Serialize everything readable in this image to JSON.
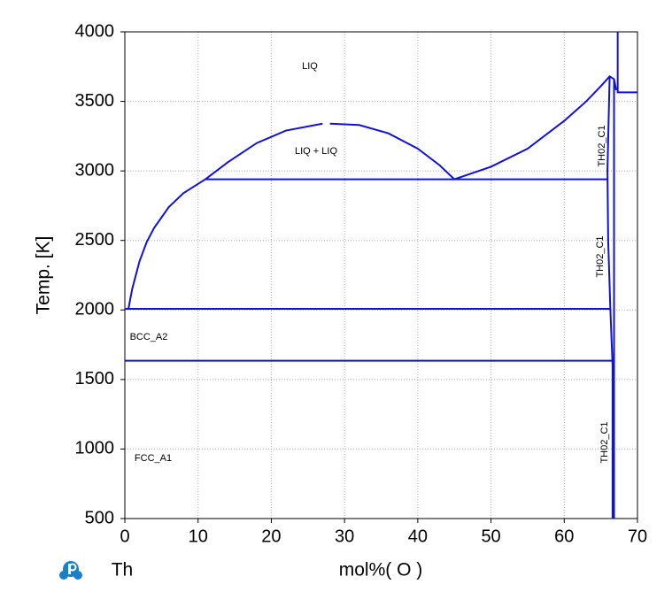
{
  "chart_data": {
    "type": "line",
    "x_label": "mol%( O )",
    "y_label": "Temp. [K]",
    "element": "Th",
    "xlim": [
      0,
      70
    ],
    "ylim": [
      500,
      4000
    ],
    "xticks": [
      0,
      10,
      20,
      30,
      40,
      50,
      60,
      70
    ],
    "yticks": [
      500,
      1000,
      1500,
      2000,
      2500,
      3000,
      3500,
      4000
    ],
    "grid": true,
    "series": [
      {
        "color": "#1010e0",
        "x": [
          0.5,
          1,
          2,
          3,
          4,
          6,
          8,
          11
        ],
        "values": [
          2010,
          2150,
          2350,
          2490,
          2590,
          2740,
          2840,
          2940
        ]
      },
      {
        "color": "#1010e0",
        "x": [
          11,
          14,
          18,
          22,
          27,
          27.5,
          28,
          32,
          36,
          40,
          43,
          45
        ],
        "values": [
          2940,
          3060,
          3200,
          3290,
          3340,
          null,
          3340,
          3330,
          3270,
          3160,
          3040,
          2940
        ]
      },
      {
        "color": "#1010e0",
        "x": [
          45,
          50,
          55,
          60,
          63,
          65,
          66.2,
          66.8,
          67.1
        ],
        "values": [
          2940,
          3030,
          3160,
          3360,
          3500,
          3610,
          3680,
          3660,
          3580
        ]
      },
      {
        "color": "#1010e0",
        "x": [
          11,
          66
        ],
        "values": [
          2940,
          2940
        ]
      },
      {
        "color": "#1010e0",
        "x": [
          0,
          66.3
        ],
        "values": [
          2008,
          2008
        ]
      },
      {
        "color": "#1010e0",
        "x": [
          0,
          66.6
        ],
        "values": [
          1635,
          1635
        ]
      },
      {
        "color": "#1010e0",
        "x": [
          66.2,
          65.9,
          66.0,
          66.3,
          66.6,
          66.6
        ],
        "values": [
          3680,
          3000,
          2500,
          2000,
          1600,
          500
        ]
      },
      {
        "color": "#1010e0",
        "x": [
          66.8,
          66.8,
          66.8,
          66.8
        ],
        "values": [
          3660,
          3000,
          2000,
          500
        ]
      },
      {
        "color": "#1010e0",
        "x": [
          67.3,
          67.3,
          70
        ],
        "values": [
          4000,
          3565,
          3565
        ]
      }
    ],
    "annotations": [
      "LIQ",
      "LIQ + LIQ",
      "BCC_A2",
      "FCC_A1",
      "TH02_C1",
      "TH02_C1",
      "TH02_C1"
    ]
  }
}
